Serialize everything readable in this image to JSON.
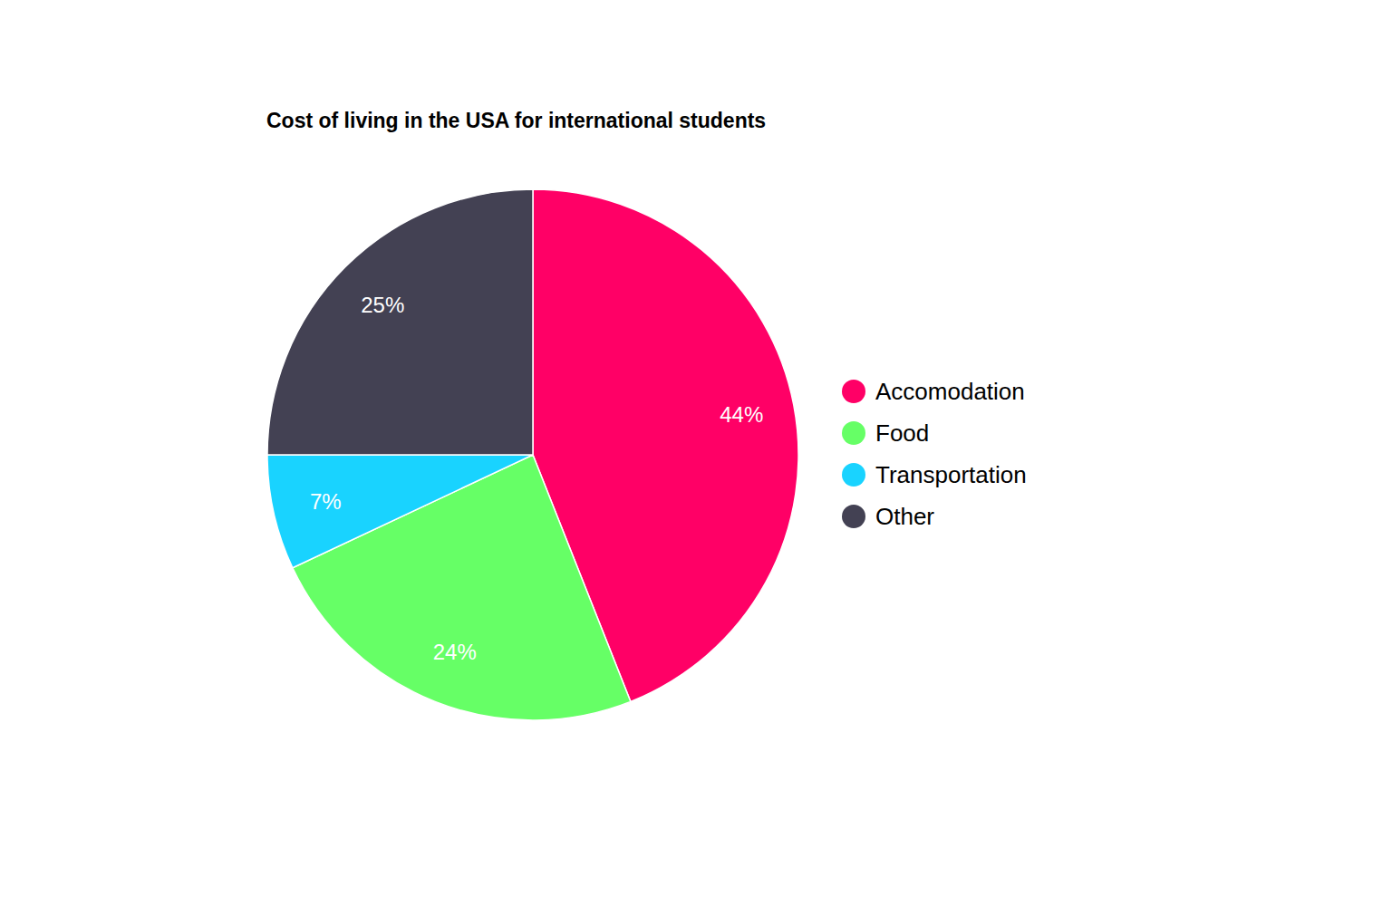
{
  "chart_data": {
    "type": "pie",
    "title": "Cost of living in the USA for international students",
    "categories": [
      "Accomodation",
      "Food",
      "Transportation",
      "Other"
    ],
    "values": [
      44,
      24,
      7,
      25
    ],
    "value_labels": [
      "44%",
      "24%",
      "7%",
      "25%"
    ],
    "colors": [
      "#ff0066",
      "#66ff66",
      "#19d3ff",
      "#434153"
    ],
    "data_labels": true,
    "legend": "right"
  }
}
